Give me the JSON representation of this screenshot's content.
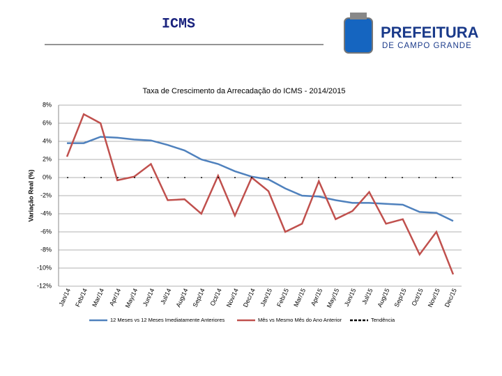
{
  "header": {
    "title": "ICMS",
    "logo_title": "PREFEITURA",
    "logo_subtitle": "DE CAMPO GRANDE"
  },
  "chart_data": {
    "type": "line",
    "title": "Taxa de Crescimento da Arrecadação do ICMS - 2014/2015",
    "y_label": "Variação Real (%)",
    "categories": [
      "Jan/14",
      "Feb/14",
      "Mar/14",
      "Apr/14",
      "May/14",
      "Jun/14",
      "Jul/14",
      "Aug/14",
      "Sep/14",
      "Oct/14",
      "Nov/14",
      "Dec/14",
      "Jan/15",
      "Feb/15",
      "Mar/15",
      "Apr/15",
      "May/15",
      "Jun/15",
      "Jul/15",
      "Aug/15",
      "Sep/15",
      "Oct/15",
      "Nov/15",
      "Dec/15"
    ],
    "series": [
      {
        "name": "12 Meses vs 12 Meses Imediatamente Anteriores",
        "color": "#4f81bd",
        "values": [
          3.8,
          3.8,
          4.5,
          4.4,
          4.2,
          4.1,
          3.6,
          3.0,
          2.0,
          1.5,
          0.7,
          0.1,
          -0.2,
          -1.2,
          -2.0,
          -2.1,
          -2.5,
          -2.8,
          -2.8,
          -2.9,
          -3.0,
          -3.8,
          -3.9,
          -4.8
        ]
      },
      {
        "name": "Mês vs Mesmo Mês do Ano Anterior",
        "color": "#c0504d",
        "values": [
          2.3,
          7.0,
          6.0,
          -0.3,
          0.1,
          1.5,
          -2.5,
          -2.4,
          -4.0,
          0.2,
          -4.2,
          0.0,
          -1.5,
          -6.0,
          -5.1,
          -0.4,
          -4.6,
          -3.7,
          -1.6,
          -5.1,
          -4.6,
          -8.5,
          -6.0,
          -10.7
        ]
      },
      {
        "name": "Tendência",
        "color": "#000000",
        "dashed": true,
        "values": [
          0,
          0,
          0,
          0,
          0,
          0,
          0,
          0,
          0,
          0,
          0,
          0,
          0,
          0,
          0,
          0,
          0,
          0,
          0,
          0,
          0,
          0,
          0,
          0
        ]
      }
    ],
    "ylim": [
      -12,
      8
    ],
    "yticks": [
      {
        "value": 8,
        "label": "8%"
      },
      {
        "value": 6,
        "label": "6%"
      },
      {
        "value": 4,
        "label": "4%"
      },
      {
        "value": 2,
        "label": "2%"
      },
      {
        "value": 0,
        "label": "0%"
      },
      {
        "value": -2,
        "label": "-2%"
      },
      {
        "value": -4,
        "label": "-4%"
      },
      {
        "value": -6,
        "label": "-6%"
      },
      {
        "value": -8,
        "label": "-8%"
      },
      {
        "value": -10,
        "label": "-10%"
      },
      {
        "value": -12,
        "label": "-12%"
      }
    ],
    "grid": true
  }
}
